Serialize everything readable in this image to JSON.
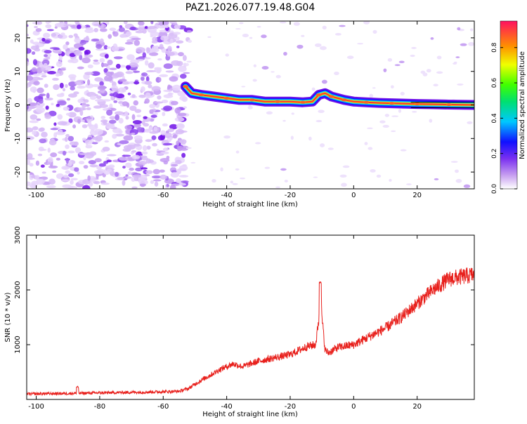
{
  "figure_title": "PAZ1.2026.077.19.48.G04",
  "chart_data": [
    {
      "type": "heatmap",
      "title": "PAZ1.2026.077.19.48.G04",
      "xlabel": "Height of straight line (km)",
      "ylabel": "Frequency (Hz)",
      "xlim": [
        -103,
        38
      ],
      "ylim": [
        -25,
        25
      ],
      "xticks": [
        -100,
        -80,
        -60,
        -40,
        -20,
        0,
        20
      ],
      "yticks": [
        -20,
        -10,
        0,
        10,
        20
      ],
      "colorbar": {
        "label": "Normalized spectral amplitude",
        "range": [
          0,
          0.95
        ],
        "ticks": [
          0.0,
          0.2,
          0.4,
          0.6,
          0.8
        ]
      },
      "noise_region_x": [
        -103,
        -53
      ],
      "tone_track": {
        "x": [
          -53,
          -51,
          -48,
          -44,
          -40,
          -36,
          -32,
          -28,
          -24,
          -20,
          -16,
          -13,
          -11,
          -9,
          -7,
          -5,
          -3,
          0,
          4,
          8,
          12,
          16,
          20,
          25,
          30,
          38
        ],
        "y": [
          5.5,
          3.5,
          3,
          2.5,
          2,
          1.5,
          1.5,
          1,
          1,
          1,
          0.8,
          1,
          3,
          3.5,
          2.5,
          2,
          1.5,
          1,
          0.8,
          0.6,
          0.5,
          0.4,
          0.3,
          0.2,
          0.1,
          0
        ]
      }
    },
    {
      "type": "line",
      "xlabel": "Height of straight line (km)",
      "ylabel": "SNR (10 * v/v)",
      "xlim": [
        -103,
        38
      ],
      "ylim": [
        0,
        3000
      ],
      "xticks": [
        -100,
        -80,
        -60,
        -40,
        -20,
        0,
        20
      ],
      "yticks": [
        1000,
        2000,
        3000
      ],
      "series": [
        {
          "name": "SNR",
          "color": "#e8201c",
          "x": [
            -103,
            -90,
            -80,
            -70,
            -60,
            -55,
            -52,
            -50,
            -48,
            -45,
            -42,
            -40,
            -38,
            -35,
            -32,
            -30,
            -25,
            -20,
            -15,
            -12,
            -11,
            -10.5,
            -10,
            -9,
            -8,
            -5,
            0,
            5,
            10,
            15,
            20,
            25,
            30,
            38
          ],
          "y": [
            100,
            110,
            120,
            130,
            140,
            150,
            200,
            280,
            350,
            450,
            550,
            600,
            650,
            600,
            660,
            700,
            760,
            820,
            960,
            1000,
            1450,
            2150,
            1500,
            900,
            850,
            950,
            1000,
            1150,
            1300,
            1500,
            1750,
            2000,
            2200,
            2280
          ]
        }
      ],
      "spikes": [
        {
          "x": -87,
          "y": 250
        },
        {
          "x": -10.5,
          "y": 2150
        }
      ]
    }
  ]
}
